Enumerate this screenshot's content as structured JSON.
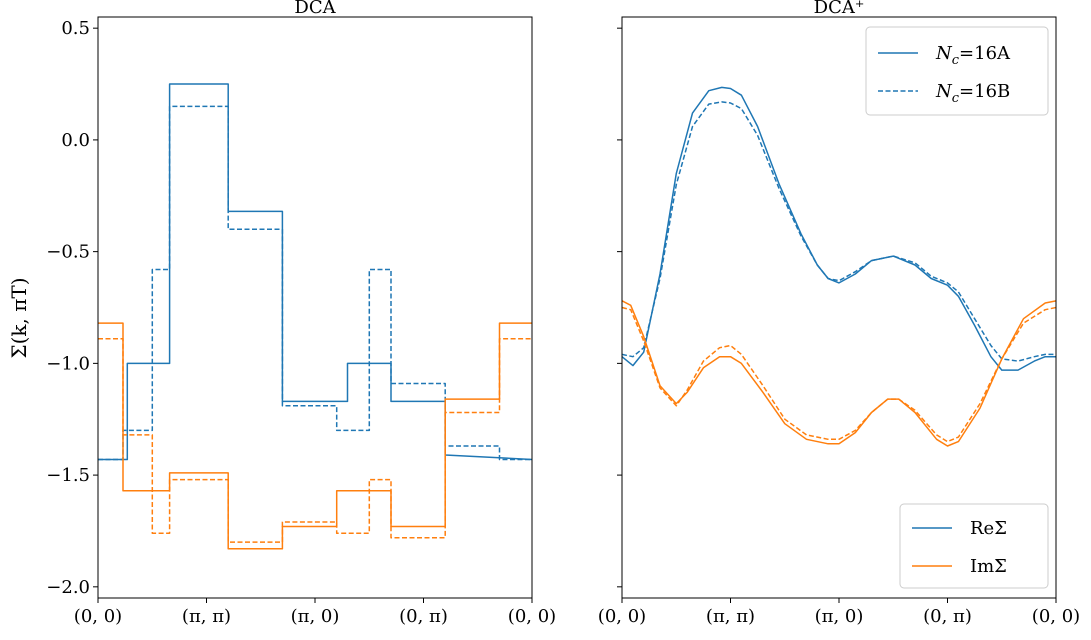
{
  "figure": {
    "ylabel": "Σ(k, πT)"
  },
  "chart_data": [
    {
      "type": "line",
      "title": "DCA",
      "ylabel": "Σ(k, πT)",
      "xlim": [
        0,
        4
      ],
      "ylim": [
        -2.05,
        0.55
      ],
      "xticks": [
        0,
        1,
        2,
        3,
        4
      ],
      "xticklabels": [
        "(0, 0)",
        "(π, π)",
        "(π, 0)",
        "(0, π)",
        "(0, 0)"
      ],
      "yticks": [
        0.5,
        0.0,
        -0.5,
        -1.0,
        -1.5,
        -2.0
      ],
      "yticklabels": [
        "0.5",
        "0.0",
        "−0.5",
        "−1.0",
        "−1.5",
        "−2.0"
      ],
      "series": [
        {
          "name": "ReΣ (Nc=16A)",
          "color": "#1f77b4",
          "dash": "solid",
          "x": [
            0,
            0.27,
            0.27,
            0.66,
            0.66,
            1.2,
            1.2,
            1.7,
            1.7,
            2.3,
            2.3,
            2.7,
            2.7,
            3.2,
            3.2,
            4
          ],
          "y": [
            -1.43,
            -1.43,
            -1.0,
            -1.0,
            0.25,
            0.25,
            -0.32,
            -0.32,
            -1.17,
            -1.17,
            -1.0,
            -1.0,
            -1.17,
            -1.17,
            -1.41,
            -1.43
          ]
        },
        {
          "name": "ReΣ (Nc=16B)",
          "color": "#1f77b4",
          "dash": "dashed",
          "x": [
            0,
            0.23,
            0.23,
            0.5,
            0.5,
            0.66,
            0.66,
            1.2,
            1.2,
            1.7,
            1.7,
            2.2,
            2.2,
            2.5,
            2.5,
            2.7,
            2.7,
            3.2,
            3.2,
            3.7,
            3.7,
            4
          ],
          "y": [
            -1.43,
            -1.43,
            -1.3,
            -1.3,
            -0.58,
            -0.58,
            0.15,
            0.15,
            -0.4,
            -0.4,
            -1.19,
            -1.19,
            -1.3,
            -1.3,
            -0.58,
            -0.58,
            -1.09,
            -1.09,
            -1.37,
            -1.37,
            -1.43,
            -1.43
          ]
        },
        {
          "name": "ImΣ (Nc=16A)",
          "color": "#ff7f0e",
          "dash": "solid",
          "x": [
            0,
            0.23,
            0.23,
            0.66,
            0.66,
            1.2,
            1.2,
            1.7,
            1.7,
            2.2,
            2.2,
            2.7,
            2.7,
            3.2,
            3.2,
            3.7,
            3.7,
            4
          ],
          "y": [
            -0.82,
            -0.82,
            -1.57,
            -1.57,
            -1.49,
            -1.49,
            -1.83,
            -1.83,
            -1.73,
            -1.73,
            -1.57,
            -1.57,
            -1.73,
            -1.73,
            -1.16,
            -1.16,
            -0.82,
            -0.82
          ]
        },
        {
          "name": "ImΣ (Nc=16B)",
          "color": "#ff7f0e",
          "dash": "dashed",
          "x": [
            0,
            0.23,
            0.23,
            0.5,
            0.5,
            0.66,
            0.66,
            1.2,
            1.2,
            1.7,
            1.7,
            2.2,
            2.2,
            2.5,
            2.5,
            2.7,
            2.7,
            3.2,
            3.2,
            3.7,
            3.7,
            4
          ],
          "y": [
            -0.89,
            -0.89,
            -1.32,
            -1.32,
            -1.76,
            -1.76,
            -1.52,
            -1.52,
            -1.8,
            -1.8,
            -1.71,
            -1.71,
            -1.76,
            -1.76,
            -1.52,
            -1.52,
            -1.78,
            -1.78,
            -1.22,
            -1.22,
            -0.89,
            -0.89
          ]
        }
      ]
    },
    {
      "type": "line",
      "title": "DCA⁺",
      "xlim": [
        0,
        4
      ],
      "ylim": [
        -2.05,
        0.55
      ],
      "xticks": [
        0,
        1,
        2,
        3,
        4
      ],
      "xticklabels": [
        "(0, 0)",
        "(π, π)",
        "(π, 0)",
        "(0, π)",
        "(0, 0)"
      ],
      "legend_line": {
        "placement": "top-right",
        "entries": [
          {
            "label": "N",
            "sub": "c",
            "suffix": "=16A",
            "dash": "solid"
          },
          {
            "label": "N",
            "sub": "c",
            "suffix": "=16B",
            "dash": "dashed"
          }
        ]
      },
      "legend_color": {
        "placement": "bottom-right",
        "entries": [
          {
            "label": "ReΣ",
            "color": "#1f77b4"
          },
          {
            "label": "ImΣ",
            "color": "#ff7f0e"
          }
        ]
      },
      "series": [
        {
          "name": "ReΣ (Nc=16A)",
          "color": "#1f77b4",
          "dash": "solid",
          "x": [
            0,
            0.1,
            0.2,
            0.35,
            0.5,
            0.65,
            0.8,
            0.92,
            1.0,
            1.1,
            1.25,
            1.45,
            1.65,
            1.8,
            1.9,
            2.0,
            2.15,
            2.3,
            2.5,
            2.7,
            2.85,
            3.0,
            3.1,
            3.25,
            3.4,
            3.5,
            3.65,
            3.8,
            3.9,
            4.0
          ],
          "y": [
            -0.97,
            -1.01,
            -0.95,
            -0.6,
            -0.15,
            0.12,
            0.22,
            0.235,
            0.23,
            0.2,
            0.06,
            -0.2,
            -0.42,
            -0.56,
            -0.62,
            -0.64,
            -0.6,
            -0.54,
            -0.52,
            -0.56,
            -0.62,
            -0.65,
            -0.7,
            -0.83,
            -0.97,
            -1.03,
            -1.03,
            -0.99,
            -0.97,
            -0.97
          ]
        },
        {
          "name": "ReΣ (Nc=16B)",
          "color": "#1f77b4",
          "dash": "dashed",
          "x": [
            0,
            0.1,
            0.2,
            0.35,
            0.5,
            0.65,
            0.8,
            0.92,
            1.0,
            1.1,
            1.25,
            1.45,
            1.65,
            1.8,
            1.9,
            2.0,
            2.15,
            2.3,
            2.5,
            2.7,
            2.85,
            3.0,
            3.1,
            3.25,
            3.4,
            3.5,
            3.65,
            3.8,
            3.9,
            4.0
          ],
          "y": [
            -0.96,
            -0.97,
            -0.93,
            -0.62,
            -0.2,
            0.06,
            0.16,
            0.17,
            0.165,
            0.14,
            0.02,
            -0.22,
            -0.43,
            -0.56,
            -0.62,
            -0.63,
            -0.59,
            -0.54,
            -0.52,
            -0.55,
            -0.61,
            -0.64,
            -0.68,
            -0.8,
            -0.92,
            -0.98,
            -0.99,
            -0.97,
            -0.96,
            -0.96
          ]
        },
        {
          "name": "ImΣ (Nc=16A)",
          "color": "#ff7f0e",
          "dash": "solid",
          "x": [
            0,
            0.08,
            0.2,
            0.35,
            0.5,
            0.6,
            0.75,
            0.9,
            1.0,
            1.1,
            1.3,
            1.5,
            1.7,
            1.9,
            2.0,
            2.15,
            2.3,
            2.45,
            2.55,
            2.7,
            2.9,
            3.0,
            3.1,
            3.3,
            3.5,
            3.7,
            3.9,
            4.0
          ],
          "y": [
            -0.72,
            -0.74,
            -0.88,
            -1.1,
            -1.18,
            -1.13,
            -1.02,
            -0.97,
            -0.97,
            -1.0,
            -1.13,
            -1.27,
            -1.34,
            -1.36,
            -1.36,
            -1.31,
            -1.22,
            -1.16,
            -1.16,
            -1.22,
            -1.34,
            -1.37,
            -1.35,
            -1.2,
            -0.98,
            -0.8,
            -0.73,
            -0.72
          ]
        },
        {
          "name": "ImΣ (Nc=16B)",
          "color": "#ff7f0e",
          "dash": "dashed",
          "x": [
            0,
            0.08,
            0.2,
            0.35,
            0.5,
            0.6,
            0.75,
            0.9,
            1.0,
            1.1,
            1.3,
            1.5,
            1.7,
            1.9,
            2.0,
            2.15,
            2.3,
            2.45,
            2.55,
            2.7,
            2.9,
            3.0,
            3.1,
            3.3,
            3.5,
            3.7,
            3.9,
            4.0
          ],
          "y": [
            -0.75,
            -0.76,
            -0.9,
            -1.11,
            -1.19,
            -1.12,
            -0.99,
            -0.93,
            -0.92,
            -0.96,
            -1.1,
            -1.25,
            -1.32,
            -1.34,
            -1.34,
            -1.3,
            -1.22,
            -1.16,
            -1.16,
            -1.21,
            -1.32,
            -1.35,
            -1.33,
            -1.18,
            -0.98,
            -0.82,
            -0.76,
            -0.75
          ]
        }
      ]
    }
  ]
}
